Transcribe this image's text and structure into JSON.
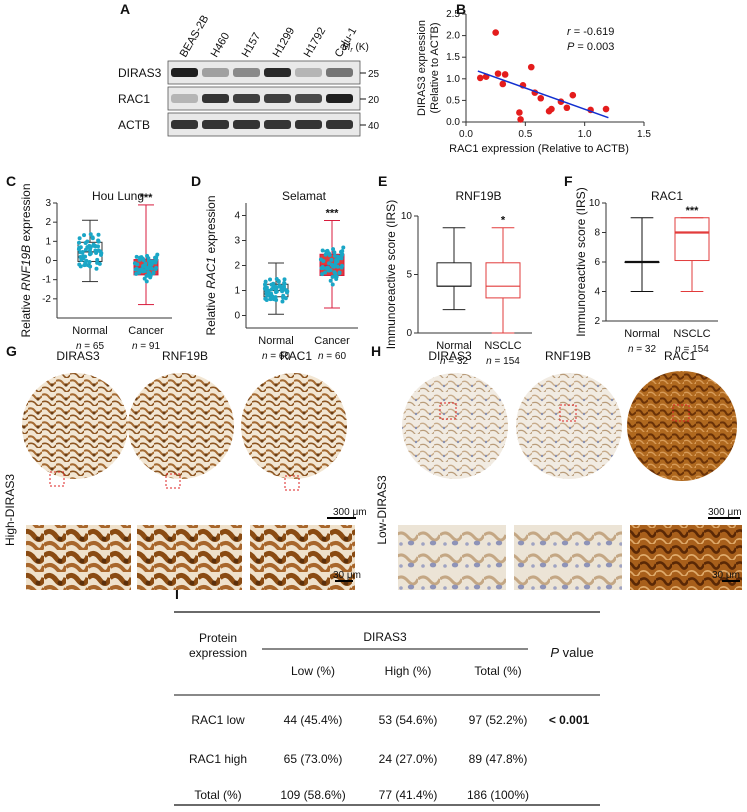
{
  "panels": {
    "A": "A",
    "B": "B",
    "C": "C",
    "D": "D",
    "E": "E",
    "F": "F",
    "G": "G",
    "H": "H",
    "I": "I"
  },
  "western_blot": {
    "cell_lines": [
      "BEAS-2B",
      "H460",
      "H157",
      "H1299",
      "H1792",
      "Calu-1"
    ],
    "rows": [
      {
        "label": "DIRAS3",
        "marker": "25",
        "intensity": [
          0.95,
          0.35,
          0.45,
          0.9,
          0.25,
          0.55
        ]
      },
      {
        "label": "RAC1",
        "marker": "20",
        "intensity": [
          0.25,
          0.85,
          0.8,
          0.8,
          0.75,
          0.95
        ]
      },
      {
        "label": "ACTB",
        "marker": "40",
        "intensity": [
          0.85,
          0.85,
          0.85,
          0.85,
          0.85,
          0.85
        ]
      }
    ],
    "mr_label": "M",
    "mr_sub": "r",
    "mr_unit": " (K)"
  },
  "chart_data": [
    {
      "panel": "B",
      "type": "scatter",
      "xlabel": "RAC1 expression (Relative to ACTB)",
      "ylabel": "DIRAS3 expression",
      "ylabel2": "(Relative to ACTB)",
      "xlim": [
        0,
        1.5
      ],
      "ylim": [
        0,
        2.5
      ],
      "x_ticks": [
        "0.0",
        "0.5",
        "1.0",
        "1.5"
      ],
      "y_ticks": [
        "0.0",
        "0.5",
        "1.0",
        "1.5",
        "2.0",
        "2.5"
      ],
      "r_text": " = -0.619",
      "r_label": "r",
      "p_text": " = 0.003",
      "p_label": "P",
      "fit_line": [
        [
          0.1,
          1.18
        ],
        [
          1.2,
          0.1
        ]
      ],
      "points": [
        [
          0.12,
          1.02
        ],
        [
          0.17,
          1.05
        ],
        [
          0.25,
          2.07
        ],
        [
          0.27,
          1.12
        ],
        [
          0.31,
          0.88
        ],
        [
          0.33,
          1.1
        ],
        [
          0.45,
          0.22
        ],
        [
          0.46,
          0.06
        ],
        [
          0.48,
          0.85
        ],
        [
          0.55,
          1.27
        ],
        [
          0.58,
          0.68
        ],
        [
          0.63,
          0.55
        ],
        [
          0.7,
          0.25
        ],
        [
          0.72,
          0.3
        ],
        [
          0.8,
          0.47
        ],
        [
          0.85,
          0.33
        ],
        [
          0.9,
          0.62
        ],
        [
          1.05,
          0.28
        ],
        [
          1.18,
          0.3
        ]
      ]
    },
    {
      "panel": "C",
      "type": "box",
      "title": "Hou Lung",
      "ylabel_pre": "Relative ",
      "ylabel_gene": "RNF19B",
      "ylabel_post": " expression",
      "ylim": [
        -3,
        3
      ],
      "y_ticks": [
        "-2",
        "-1",
        "0",
        "1",
        "2",
        "3"
      ],
      "y_tick_values": [
        -2,
        -1,
        0,
        1,
        2,
        3
      ],
      "categories": [
        "Normal",
        "Cancer"
      ],
      "n": [
        "65",
        "91"
      ],
      "n_label": "n",
      "significance": "***",
      "boxes": [
        {
          "min": -1.1,
          "q1": -0.05,
          "median": 0.45,
          "q3": 0.95,
          "max": 2.1
        },
        {
          "min": -2.3,
          "q1": -0.75,
          "median": -0.35,
          "q3": 0.05,
          "max": 2.9
        }
      ]
    },
    {
      "panel": "D",
      "type": "box",
      "title": "Selamat",
      "ylabel_pre": "Relative ",
      "ylabel_gene": "RAC1",
      "ylabel_post": " expression",
      "ylim": [
        -0.5,
        4.5
      ],
      "y_ticks": [
        "0",
        "1",
        "2",
        "3",
        "4"
      ],
      "y_tick_values": [
        0,
        1,
        2,
        3,
        4
      ],
      "categories": [
        "Normal",
        "Cancer"
      ],
      "n": [
        "60",
        "60"
      ],
      "n_label": "n",
      "significance": "***",
      "boxes": [
        {
          "min": 0.05,
          "q1": 0.75,
          "median": 1.0,
          "q3": 1.25,
          "max": 2.1
        },
        {
          "min": 0.3,
          "q1": 1.6,
          "median": 2.0,
          "q3": 2.45,
          "max": 3.8
        }
      ]
    },
    {
      "panel": "E",
      "type": "box",
      "title": "RNF19B",
      "ylabel": "Immunoreactive score (IRS)",
      "ylim": [
        0,
        10
      ],
      "y_ticks": [
        "0",
        "5",
        "10"
      ],
      "y_tick_values": [
        0,
        5,
        10
      ],
      "categories": [
        "Normal",
        "NSCLC"
      ],
      "n": [
        "32",
        "154"
      ],
      "n_label": "n",
      "significance": "*",
      "boxes": [
        {
          "min": 2,
          "q1": 4,
          "median": 4,
          "q3": 6,
          "max": 9
        },
        {
          "min": 0,
          "q1": 3,
          "median": 4,
          "q3": 6,
          "max": 9
        }
      ]
    },
    {
      "panel": "F",
      "type": "box",
      "title": "RAC1",
      "ylabel": "Immunoreactive score (IRS)",
      "ylim": [
        2,
        10
      ],
      "y_ticks": [
        "2",
        "4",
        "6",
        "8",
        "10"
      ],
      "y_tick_values": [
        2,
        4,
        6,
        8,
        10
      ],
      "categories": [
        "Normal",
        "NSCLC"
      ],
      "n": [
        "32",
        "154"
      ],
      "n_label": "n",
      "significance": "***",
      "boxes": [
        {
          "min": 4,
          "q1": 6,
          "median": 6,
          "q3": 6,
          "max": 9
        },
        {
          "min": 4,
          "q1": 6.1,
          "median": 8,
          "q3": 9,
          "max": 9
        }
      ]
    }
  ],
  "ihc": {
    "G": {
      "side_label": "High-DIRAS3",
      "stains": [
        "DIRAS3",
        "RNF19B",
        "RAC1"
      ],
      "scale_top": "300 μm",
      "scale_bottom": "30 μm"
    },
    "H": {
      "side_label": "Low-DIRAS3",
      "stains": [
        "DIRAS3",
        "RNF19B",
        "RAC1"
      ],
      "scale_top": "300 μm",
      "scale_bottom": "30 μm"
    }
  },
  "table": {
    "header_protein": "Protein",
    "header_protein2": "expression",
    "header_group": "DIRAS3",
    "columns": [
      "Low (%)",
      "High (%)",
      "Total (%)"
    ],
    "header_p": "P",
    "header_p_post": " value",
    "rows": [
      {
        "label": "RAC1 low",
        "cells": [
          "44 (45.4%)",
          "53 (54.6%)",
          "97 (52.2%)"
        ],
        "p": "< 0.001"
      },
      {
        "label": "RAC1 high",
        "cells": [
          "65 (73.0%)",
          "24 (27.0%)",
          "89 (47.8%)"
        ],
        "p": ""
      },
      {
        "label": "Total (%)",
        "cells": [
          "109  (58.6%)",
          "77  (41.4%)",
          "186 (100%)"
        ],
        "p": ""
      }
    ]
  }
}
